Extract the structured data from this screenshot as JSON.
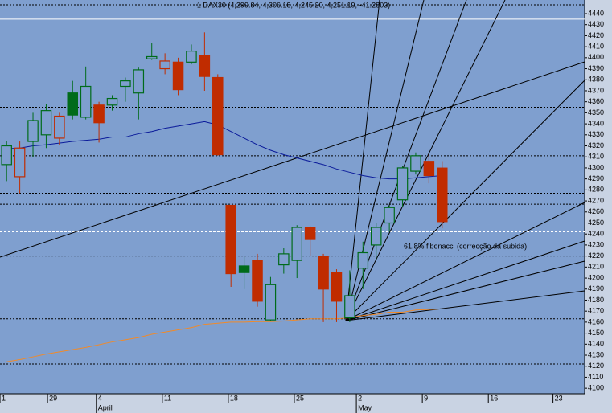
{
  "chart_data": {
    "type": "candlestick",
    "title": "1 DAX30 (4,299.84, 4,306.18, 4,245.20, 4,251.19, -41.2803)",
    "annotation": "61.8% fibonacci (correcção da subida)",
    "x": [
      0,
      1,
      2,
      3,
      4,
      5,
      6,
      7,
      8,
      9,
      10,
      11,
      12,
      13,
      14,
      15,
      16,
      17,
      18,
      19,
      20,
      21,
      22,
      23,
      24,
      25,
      26,
      27,
      28,
      29,
      30,
      31,
      32,
      33
    ],
    "open": [
      4303,
      4292,
      4324,
      4330,
      4327,
      4368,
      4346,
      4357,
      4357,
      4374,
      4368,
      4399,
      4390,
      4396,
      4396,
      4402,
      4382,
      4266,
      4211,
      4216,
      4162,
      4212,
      4216,
      4246,
      4220,
      4205,
      4164,
      4209,
      4230,
      4250,
      4271,
      4297,
      4306,
      4299.84
    ],
    "high": [
      4324,
      4324,
      4350,
      4358,
      4350,
      4379,
      4392,
      4360,
      4366,
      4382,
      4391,
      4413,
      4404,
      4400,
      4412,
      4423,
      4385,
      4266,
      4219,
      4222,
      4201,
      4227,
      4248,
      4247,
      4222,
      4208,
      4207,
      4233,
      4250,
      4266,
      4302,
      4314,
      4312,
      4306.18
    ],
    "low": [
      4288,
      4277,
      4310,
      4318,
      4321,
      4344,
      4344,
      4323,
      4352,
      4360,
      4344,
      4398,
      4385,
      4366,
      4394,
      4370,
      4311,
      4192,
      4190,
      4174,
      4161,
      4204,
      4200,
      4220,
      4160,
      4160,
      4160,
      4190,
      4217,
      4242,
      4265,
      4294,
      4286,
      4245.2
    ],
    "close": [
      4320,
      4318,
      4343,
      4352,
      4347,
      4348,
      4374,
      4341,
      4363,
      4379,
      4389,
      4401,
      4397,
      4371,
      4406,
      4383,
      4312,
      4204,
      4205,
      4179,
      4194,
      4222,
      4246,
      4235,
      4190,
      4179,
      4184,
      4223,
      4246,
      4264,
      4300,
      4311,
      4293,
      4251.19
    ],
    "up_color": "#006b1a",
    "down_color": "#c02c00",
    "ma_lines": [
      {
        "color": "#0a1a9a",
        "values": [
          4317.4,
          4318,
          4320,
          4321,
          4322.5,
          4324,
          4325,
          4326,
          4328,
          4328,
          4331,
          4333,
          4336,
          4338,
          4340,
          4342,
          4339,
          4333,
          4327,
          4321,
          4316,
          4312,
          4309,
          4306,
          4303,
          4299,
          4296,
          4293,
          4291,
          4290,
          4290,
          4291,
          4292,
          4293
        ]
      },
      {
        "color": "#f08a2a",
        "values": [
          4124,
          4126,
          4128.5,
          4131,
          4133,
          4135,
          4137,
          4139.5,
          4142,
          4144,
          4146,
          4149,
          4151,
          4153,
          4155,
          4158,
          4159,
          4160,
          4160,
          4160.5,
          4160.5,
          4161,
          4162,
          4163,
          4163,
          4163,
          4164,
          4166,
          4167,
          4169,
          4169,
          4171,
          4171.5,
          4172
        ]
      }
    ],
    "levels": [
      4448,
      4355,
      4311,
      4277,
      4267,
      4220,
      4163,
      4122
    ],
    "white_levels": [
      4435,
      4242
    ],
    "xlim": [
      -0.5,
      43.8
    ],
    "ylim": [
      4095,
      4452.4
    ],
    "yticks": [
      4100,
      4110,
      4120,
      4130,
      4140,
      4150,
      4160,
      4170,
      4180,
      4190,
      4200,
      4210,
      4220,
      4230,
      4240,
      4250,
      4260,
      4270,
      4280,
      4290,
      4300,
      4310,
      4320,
      4330,
      4340,
      4350,
      4360,
      4370,
      4380,
      4390,
      4400,
      4410,
      4420,
      4430,
      4440
    ],
    "xticks": [
      {
        "value": -0.5,
        "label": "1"
      },
      {
        "value": 3.1,
        "label": "29"
      },
      {
        "value": 6.8,
        "label": "4"
      },
      {
        "value": 11.8,
        "label": "11"
      },
      {
        "value": 16.8,
        "label": "18"
      },
      {
        "value": 21.8,
        "label": "25"
      },
      {
        "value": 26.5,
        "label": "2"
      },
      {
        "value": 31.5,
        "label": "9"
      },
      {
        "value": 36.5,
        "label": "16"
      },
      {
        "value": 41.4,
        "label": "23"
      }
    ],
    "month_ticks": [
      {
        "value": 6.8,
        "label": "April"
      },
      {
        "value": 26.5,
        "label": "May"
      }
    ]
  }
}
